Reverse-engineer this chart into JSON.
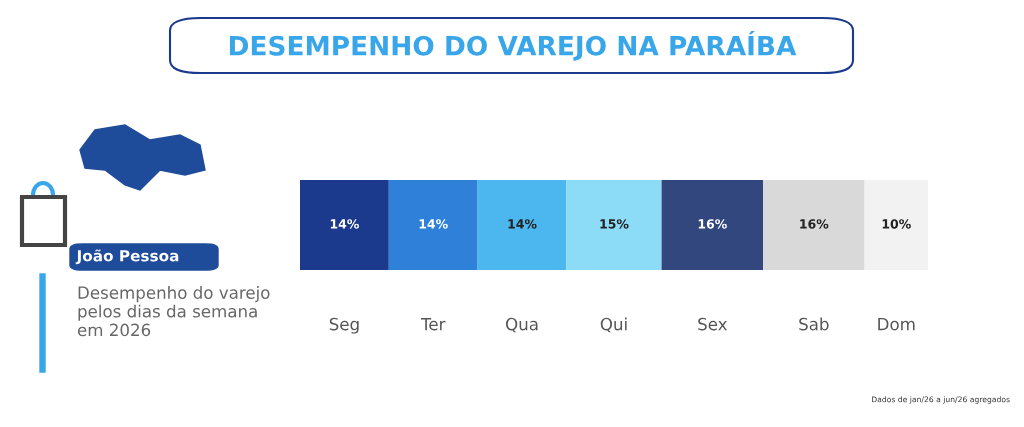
{
  "chart_data": {
    "type": "bar",
    "title": "DESEMPENHO DO VAREJO NA PARAÍBA",
    "orientation": "horizontal",
    "stacked": true,
    "categories": [
      null
    ],
    "series": [
      {
        "name": "Seg",
        "color": "#1b3a8e",
        "values": [
          14
        ],
        "value_labels": [
          "14%"
        ]
      },
      {
        "name": "Ter",
        "color": "#2f80d8",
        "values": [
          14
        ],
        "value_labels": [
          "14%"
        ]
      },
      {
        "name": "Qua",
        "color": "#4cb7ee",
        "values": [
          14
        ],
        "value_labels": [
          "14%"
        ]
      },
      {
        "name": "Qui",
        "color": "#8cdcf8",
        "values": [
          15
        ],
        "value_labels": [
          "15%"
        ]
      },
      {
        "name": "Sex",
        "color": "#33477f",
        "values": [
          16
        ],
        "value_labels": [
          "16%"
        ]
      },
      {
        "name": "Sab",
        "color": "#d9d9d9",
        "values": [
          16
        ],
        "value_labels": [
          "16%"
        ]
      },
      {
        "name": "Dom",
        "color": "#f2f2f2",
        "values": [
          10
        ],
        "value_labels": [
          "10%"
        ]
      }
    ],
    "annotations": [
      "João Pessoa",
      "Desempenho do varejo pelos dias da semana em 2026",
      "Dados de jan/26 a jun/26 agregados"
    ],
    "legend": false,
    "grid": false,
    "tick_labels": false
  }
}
